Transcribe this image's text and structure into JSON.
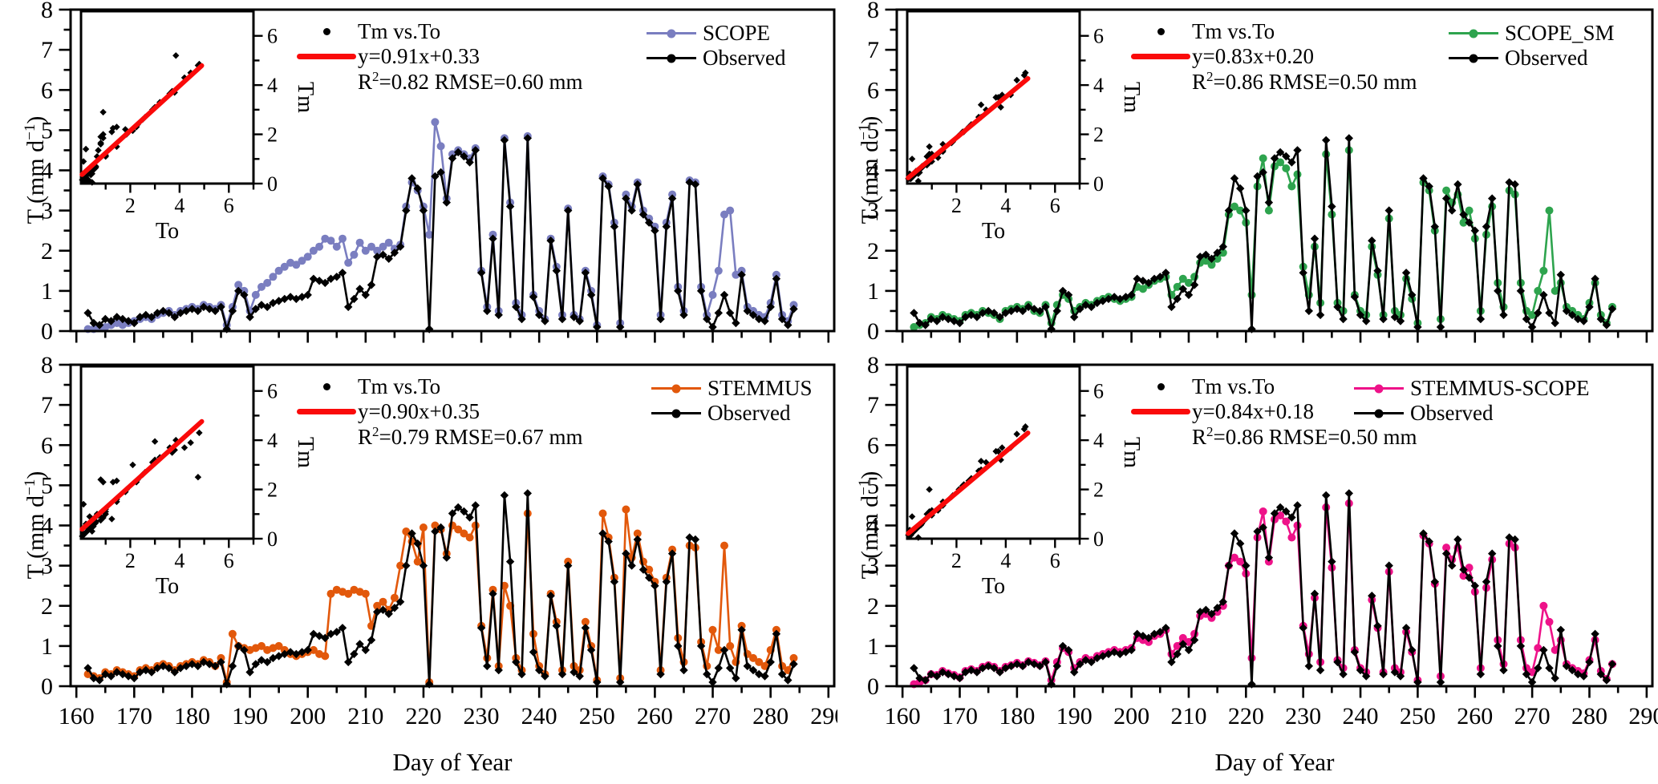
{
  "figure": {
    "description_title": "",
    "xlabel": "Day of  Year"
  },
  "chart_data": {
    "type": "line",
    "xlabel": "Day of  Year",
    "ylabel": {
      "pre": "T (mm d",
      "sup": "−1",
      "post": ")"
    },
    "x_start_day": 162,
    "xlim": [
      159,
      291
    ],
    "ylim": [
      0,
      8
    ],
    "x_major_ticks": [
      160,
      170,
      180,
      190,
      200,
      210,
      220,
      230,
      240,
      250,
      260,
      270,
      280,
      290
    ],
    "x_minor_step": 5,
    "y_major_ticks": [
      0,
      1,
      2,
      3,
      4,
      5,
      6,
      7,
      8
    ],
    "y_minor_step": 0.5,
    "grid": false,
    "legend_position": "top-right-inside",
    "observed": {
      "label": "Observed",
      "color": "#000000",
      "values": [
        0.45,
        0.2,
        0.15,
        0.3,
        0.25,
        0.35,
        0.3,
        0.25,
        0.2,
        0.35,
        0.4,
        0.35,
        0.45,
        0.5,
        0.45,
        0.35,
        0.45,
        0.5,
        0.55,
        0.5,
        0.6,
        0.55,
        0.5,
        0.6,
        0.05,
        0.5,
        1.0,
        0.9,
        0.35,
        0.55,
        0.65,
        0.6,
        0.7,
        0.75,
        0.8,
        0.85,
        0.8,
        0.85,
        0.9,
        1.3,
        1.25,
        1.2,
        1.3,
        1.35,
        1.45,
        0.6,
        0.8,
        1.05,
        0.9,
        1.15,
        1.85,
        1.9,
        1.8,
        1.95,
        2.1,
        3.0,
        3.8,
        3.55,
        3.0,
        0.05,
        3.85,
        3.95,
        3.2,
        4.3,
        4.45,
        4.35,
        4.2,
        4.5,
        1.45,
        0.5,
        2.3,
        0.4,
        4.75,
        3.1,
        0.6,
        0.3,
        4.8,
        0.85,
        0.4,
        0.25,
        2.25,
        1.5,
        0.3,
        3.0,
        0.35,
        0.25,
        1.45,
        0.9,
        0.1,
        3.8,
        3.6,
        2.6,
        0.1,
        3.3,
        3.0,
        3.65,
        2.9,
        2.7,
        2.5,
        0.3,
        2.6,
        3.3,
        1.0,
        0.4,
        3.7,
        3.65,
        1.0,
        0.3,
        0.1,
        0.45,
        0.9,
        0.45,
        0.2,
        1.4,
        0.5,
        0.4,
        0.3,
        0.25,
        0.6,
        1.3,
        0.3,
        0.15,
        0.55
      ]
    },
    "inset_axes": {
      "xlabel": "To",
      "ylabel": "Tm",
      "xlim": [
        0,
        7
      ],
      "ylim": [
        0,
        7
      ],
      "x_ticks": [
        2,
        4,
        6
      ],
      "y_ticks": [
        0,
        2,
        4,
        6
      ]
    },
    "panels": [
      {
        "position": "top-left",
        "model": {
          "label": "SCOPE",
          "color": "#7A7EC0",
          "values": [
            0.05,
            0.05,
            0.1,
            0.1,
            0.15,
            0.2,
            0.15,
            0.2,
            0.25,
            0.3,
            0.35,
            0.3,
            0.4,
            0.45,
            0.5,
            0.4,
            0.5,
            0.55,
            0.6,
            0.55,
            0.65,
            0.6,
            0.55,
            0.65,
            0.15,
            0.6,
            1.15,
            1.0,
            0.5,
            0.9,
            1.1,
            1.2,
            1.35,
            1.5,
            1.6,
            1.7,
            1.65,
            1.75,
            1.85,
            2.0,
            2.1,
            2.3,
            2.25,
            2.1,
            2.3,
            1.7,
            1.9,
            2.2,
            2.0,
            2.1,
            2.0,
            2.1,
            2.2,
            2.05,
            2.15,
            3.1,
            3.7,
            3.5,
            3.1,
            2.4,
            5.2,
            4.6,
            3.3,
            4.4,
            4.5,
            4.4,
            4.3,
            4.55,
            1.5,
            0.6,
            2.4,
            0.5,
            4.8,
            3.2,
            0.7,
            0.4,
            4.85,
            0.9,
            0.5,
            0.3,
            2.3,
            1.6,
            0.4,
            3.05,
            0.4,
            0.3,
            1.5,
            1.0,
            0.15,
            3.85,
            3.65,
            2.7,
            0.2,
            3.4,
            3.1,
            3.7,
            3.0,
            2.8,
            2.6,
            0.4,
            2.7,
            3.4,
            1.1,
            0.5,
            3.75,
            3.7,
            1.1,
            0.4,
            0.9,
            1.5,
            2.9,
            3.0,
            1.4,
            1.5,
            0.6,
            0.5,
            0.4,
            0.35,
            0.7,
            1.4,
            0.4,
            0.25,
            0.65
          ]
        },
        "legend": {
          "scatter_label": "Tm vs.To",
          "fit_label": "y=0.91x+0.33",
          "r2_pre": "R",
          "r2_sup": "2",
          "r2_post": "=0.82 RMSE=0.60 mm",
          "fit_color": "#FA0A0A"
        },
        "fit": {
          "slope": 0.91,
          "intercept": 0.33
        }
      },
      {
        "position": "top-right",
        "model": {
          "label": "SCOPE_SM",
          "color": "#2EA44E",
          "values": [
            0.1,
            0.15,
            0.2,
            0.35,
            0.3,
            0.4,
            0.35,
            0.3,
            0.25,
            0.4,
            0.45,
            0.4,
            0.5,
            0.45,
            0.4,
            0.3,
            0.5,
            0.55,
            0.6,
            0.55,
            0.65,
            0.5,
            0.45,
            0.65,
            0.2,
            0.65,
            0.9,
            0.8,
            0.5,
            0.6,
            0.7,
            0.65,
            0.75,
            0.8,
            0.85,
            0.8,
            0.75,
            0.8,
            0.85,
            1.1,
            1.05,
            1.15,
            1.25,
            1.3,
            1.35,
            0.9,
            1.1,
            1.3,
            1.2,
            1.35,
            1.7,
            1.75,
            1.65,
            1.8,
            1.95,
            2.9,
            3.1,
            3.0,
            2.7,
            0.9,
            3.6,
            4.3,
            3.0,
            4.1,
            4.2,
            4.05,
            3.6,
            3.9,
            1.6,
            0.9,
            2.1,
            0.7,
            4.4,
            2.9,
            0.7,
            0.5,
            4.5,
            0.9,
            0.5,
            0.4,
            2.1,
            1.4,
            0.4,
            2.8,
            0.5,
            0.4,
            1.3,
            0.8,
            0.2,
            3.7,
            3.5,
            2.5,
            0.3,
            3.5,
            3.2,
            3.4,
            2.7,
            3.0,
            2.3,
            0.5,
            2.4,
            3.1,
            1.2,
            0.6,
            3.5,
            3.4,
            1.2,
            0.5,
            0.4,
            1.0,
            1.5,
            3.0,
            1.0,
            1.2,
            0.6,
            0.5,
            0.4,
            0.3,
            0.7,
            1.2,
            0.4,
            0.2,
            0.6
          ]
        },
        "legend": {
          "scatter_label": "Tm vs.To",
          "fit_label": "y=0.83x+0.20",
          "r2_pre": "R",
          "r2_sup": "2",
          "r2_post": "=0.86 RMSE=0.50 mm",
          "fit_color": "#FA0A0A"
        },
        "fit": {
          "slope": 0.83,
          "intercept": 0.2
        }
      },
      {
        "position": "bottom-left",
        "model": {
          "label": "STEMMUS",
          "color": "#E2580B",
          "values": [
            0.3,
            0.25,
            0.2,
            0.35,
            0.3,
            0.4,
            0.35,
            0.3,
            0.25,
            0.4,
            0.45,
            0.4,
            0.5,
            0.55,
            0.5,
            0.4,
            0.5,
            0.55,
            0.6,
            0.55,
            0.65,
            0.6,
            0.5,
            0.7,
            0.1,
            1.3,
            1.0,
            0.95,
            0.9,
            0.95,
            1.0,
            0.9,
            0.95,
            1.0,
            0.9,
            0.8,
            0.75,
            0.8,
            0.85,
            0.9,
            0.8,
            0.75,
            2.3,
            2.4,
            2.35,
            2.3,
            2.4,
            2.35,
            2.3,
            1.5,
            2.0,
            2.1,
            1.9,
            2.2,
            3.0,
            3.85,
            3.6,
            3.1,
            3.95,
            0.1,
            4.0,
            3.9,
            3.3,
            4.0,
            3.9,
            3.8,
            3.7,
            4.0,
            1.5,
            0.7,
            2.4,
            0.5,
            2.5,
            2.0,
            0.7,
            0.4,
            4.3,
            1.3,
            0.5,
            0.3,
            2.3,
            1.6,
            0.4,
            3.1,
            0.5,
            0.4,
            1.6,
            1.0,
            0.15,
            4.3,
            3.7,
            2.7,
            0.2,
            4.4,
            3.2,
            3.8,
            3.1,
            2.9,
            2.6,
            0.4,
            2.7,
            3.4,
            1.2,
            0.6,
            3.5,
            3.45,
            1.1,
            0.5,
            1.4,
            0.9,
            3.5,
            1.0,
            0.6,
            1.5,
            0.8,
            0.7,
            0.6,
            0.5,
            0.9,
            1.4,
            0.5,
            0.4,
            0.7
          ]
        },
        "legend": {
          "scatter_label": "Tm vs.To",
          "fit_label": "y=0.90x+0.35",
          "r2_pre": "R",
          "r2_sup": "2",
          "r2_post": "=0.79 RMSE=0.67 mm",
          "fit_color": "#FA0A0A"
        },
        "fit": {
          "slope": 0.9,
          "intercept": 0.35
        }
      },
      {
        "position": "bottom-right",
        "model": {
          "label": "STEMMUS-SCOPE",
          "color": "#EE1289",
          "values": [
            0.05,
            0.1,
            0.15,
            0.3,
            0.28,
            0.38,
            0.32,
            0.28,
            0.22,
            0.38,
            0.42,
            0.38,
            0.48,
            0.52,
            0.48,
            0.38,
            0.48,
            0.52,
            0.58,
            0.52,
            0.62,
            0.58,
            0.52,
            0.62,
            0.15,
            0.6,
            0.95,
            0.85,
            0.45,
            0.6,
            0.7,
            0.65,
            0.75,
            0.8,
            0.85,
            0.9,
            0.85,
            0.9,
            0.95,
            1.2,
            1.15,
            1.1,
            1.25,
            1.3,
            1.4,
            0.8,
            1.0,
            1.2,
            1.1,
            1.3,
            1.75,
            1.8,
            1.7,
            1.85,
            2.0,
            3.0,
            3.2,
            3.1,
            2.8,
            0.7,
            3.7,
            4.35,
            3.1,
            4.15,
            4.25,
            4.1,
            3.7,
            4.0,
            1.5,
            0.8,
            2.2,
            0.6,
            4.45,
            2.95,
            0.65,
            0.45,
            4.55,
            0.9,
            0.45,
            0.35,
            2.15,
            1.45,
            0.35,
            2.85,
            0.45,
            0.35,
            1.35,
            0.85,
            0.15,
            3.75,
            3.55,
            2.55,
            0.25,
            3.45,
            3.15,
            3.45,
            2.75,
            2.95,
            2.35,
            0.45,
            2.45,
            3.15,
            1.15,
            0.55,
            3.55,
            3.45,
            1.15,
            0.45,
            0.35,
            0.95,
            2.0,
            1.6,
            0.9,
            1.15,
            0.55,
            0.45,
            0.38,
            0.32,
            0.65,
            1.15,
            0.38,
            0.18,
            0.55
          ]
        },
        "legend": {
          "scatter_label": "Tm vs.To",
          "fit_label": "y=0.84x+0.18",
          "r2_pre": "R",
          "r2_sup": "2",
          "r2_post": "=0.86 RMSE=0.50 mm",
          "fit_color": "#FA0A0A"
        },
        "fit": {
          "slope": 0.84,
          "intercept": 0.18
        }
      }
    ]
  }
}
